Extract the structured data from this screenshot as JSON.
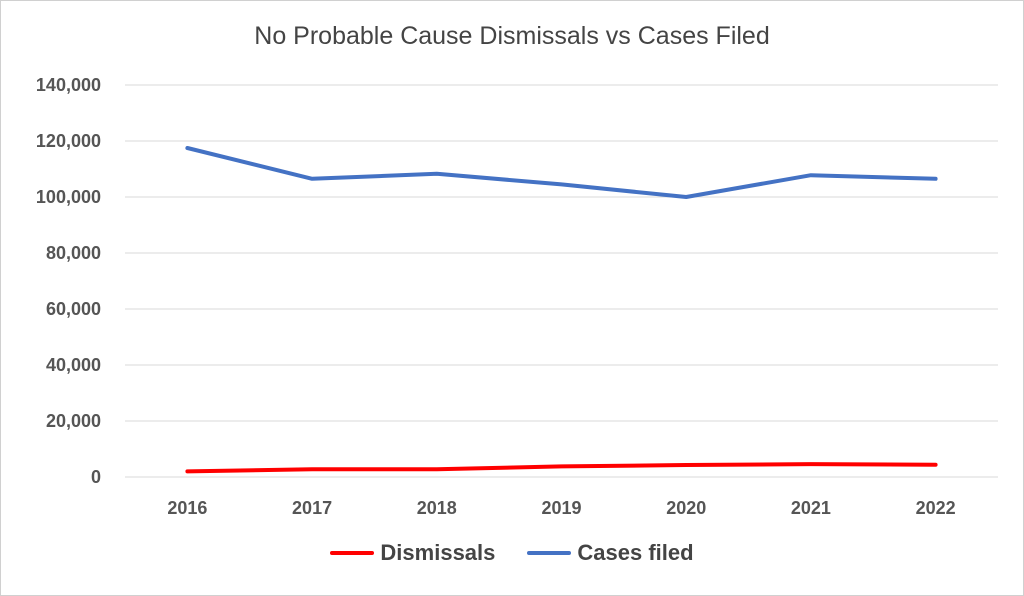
{
  "chart_data": {
    "type": "line",
    "title": "No Probable Cause Dismissals vs Cases Filed",
    "xlabel": "",
    "ylabel": "",
    "categories": [
      "2016",
      "2017",
      "2018",
      "2019",
      "2020",
      "2021",
      "2022"
    ],
    "ylim": [
      0,
      140000
    ],
    "yticks": [
      0,
      20000,
      40000,
      60000,
      80000,
      100000,
      120000,
      140000
    ],
    "ytick_labels": [
      "0",
      "20,000",
      "40,000",
      "60,000",
      "80,000",
      "100,000",
      "120,000",
      "140,000"
    ],
    "grid": true,
    "legend_position": "bottom",
    "series": [
      {
        "name": "Dismissals",
        "color": "#ff0000",
        "values": [
          2000,
          2800,
          2800,
          3800,
          4300,
          4600,
          4400
        ]
      },
      {
        "name": "Cases filed",
        "color": "#4472c4",
        "values": [
          117500,
          106500,
          108300,
          104500,
          100000,
          107800,
          106500
        ]
      }
    ]
  }
}
